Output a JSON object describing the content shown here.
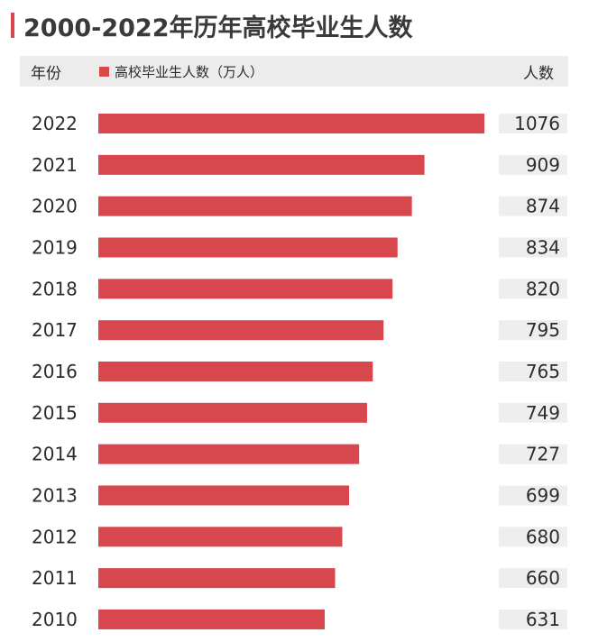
{
  "title": "2000-2022年历年高校毕业生人数",
  "header": {
    "year_label": "年份",
    "legend_label": "高校毕业生人数（万人）",
    "count_label": "人数"
  },
  "colors": {
    "bar": "#d8464e",
    "value_bg": "#eeeeee",
    "accent": "#d8464e"
  },
  "chart_data": {
    "type": "bar",
    "orientation": "horizontal",
    "title": "2000-2022年历年高校毕业生人数",
    "categories": [
      "2022",
      "2021",
      "2020",
      "2019",
      "2018",
      "2017",
      "2016",
      "2015",
      "2014",
      "2013",
      "2012",
      "2011",
      "2010"
    ],
    "series": [
      {
        "name": "高校毕业生人数（万人）",
        "values": [
          1076,
          909,
          874,
          834,
          820,
          795,
          765,
          749,
          727,
          699,
          680,
          660,
          631
        ]
      }
    ],
    "xlim": [
      0,
      1076
    ],
    "grid": false,
    "legend": "top"
  }
}
